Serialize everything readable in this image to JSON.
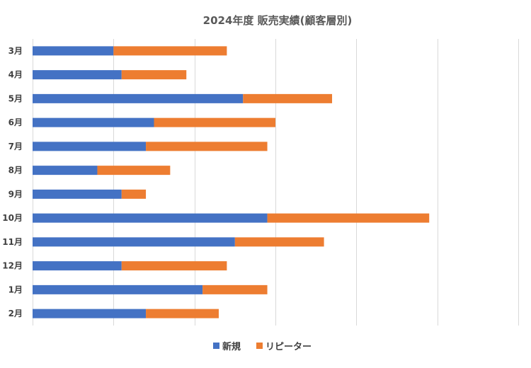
{
  "chart_data": {
    "type": "bar",
    "orientation": "horizontal",
    "stacked": true,
    "title": "2024年度 販売実績(顧客層別)",
    "categories": [
      "3月",
      "4月",
      "5月",
      "6月",
      "7月",
      "8月",
      "9月",
      "10月",
      "11月",
      "12月",
      "1月",
      "2月"
    ],
    "series": [
      {
        "name": "新規",
        "color": "#4472C4",
        "values": [
          10,
          11,
          26,
          15,
          14,
          8,
          11,
          29,
          25,
          11,
          21,
          14
        ]
      },
      {
        "name": "リピーター",
        "color": "#ED7D31",
        "values": [
          14,
          8,
          11,
          15,
          15,
          9,
          3,
          20,
          11,
          13,
          8,
          9
        ]
      }
    ],
    "xlim": [
      0,
      60
    ],
    "x_tick_interval": 10,
    "x_tick_labels_shown": false,
    "grid": "vertical",
    "legend": "bottom"
  }
}
